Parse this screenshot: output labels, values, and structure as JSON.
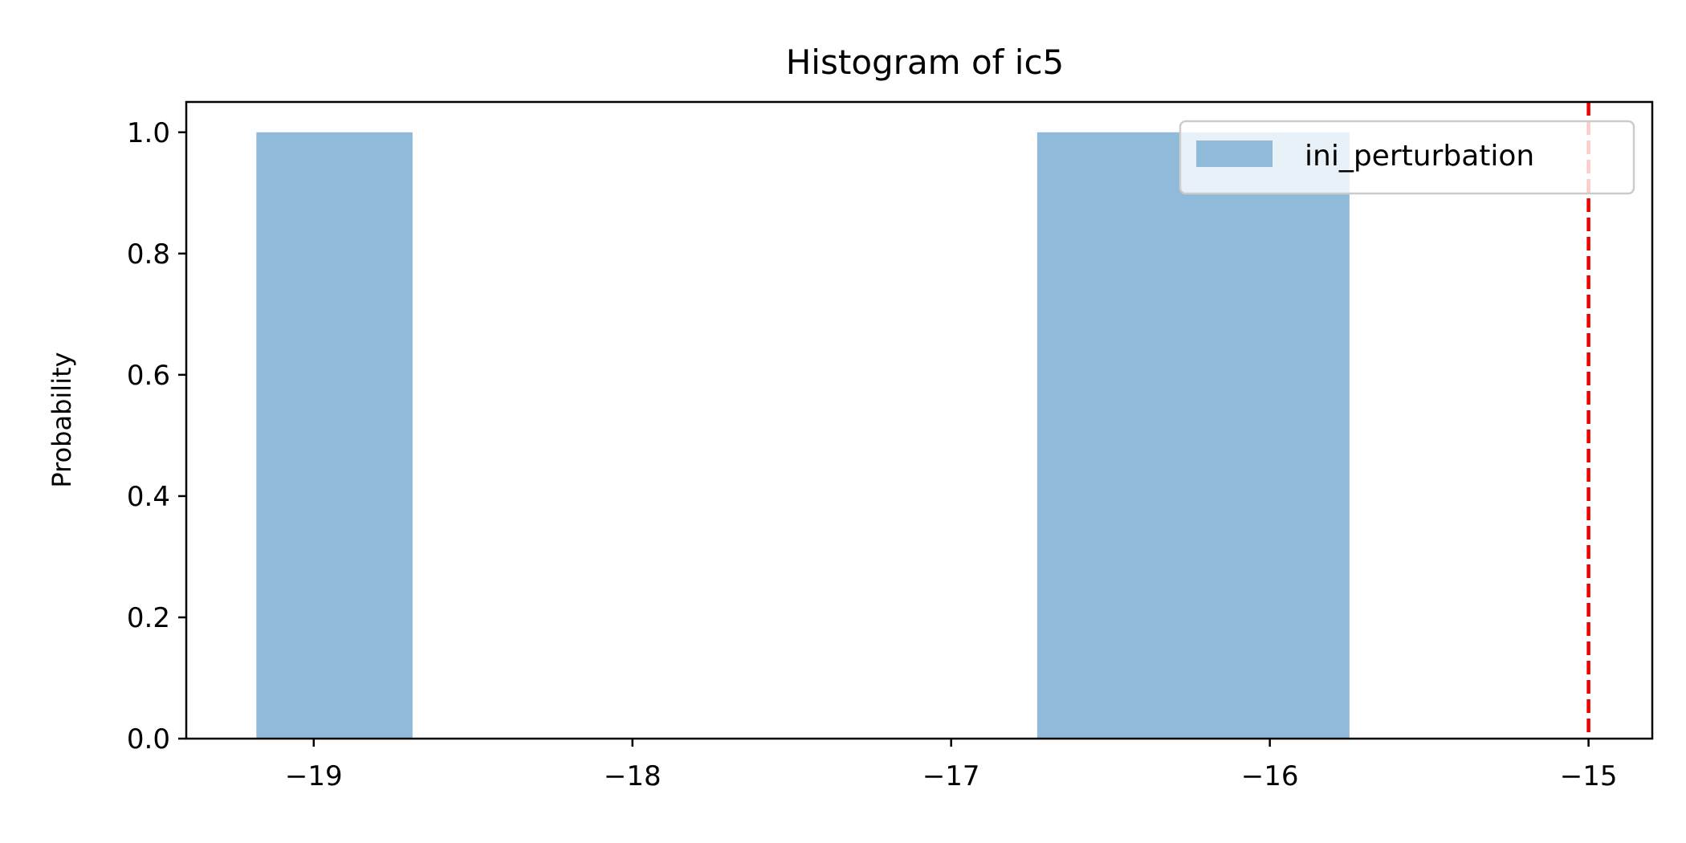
{
  "chart_data": {
    "type": "bar",
    "title": "Histogram of ic5",
    "xlabel": "",
    "ylabel": "Probability",
    "xlim": [
      -19.4,
      -14.8
    ],
    "ylim": [
      0,
      1.05
    ],
    "x_ticks": [
      -19,
      -18,
      -17,
      -16,
      -15
    ],
    "x_tick_labels": [
      "−19",
      "−18",
      "−17",
      "−16",
      "−15"
    ],
    "y_ticks": [
      0.0,
      0.2,
      0.4,
      0.6,
      0.8,
      1.0
    ],
    "y_tick_labels": [
      "0.0",
      "0.2",
      "0.4",
      "0.6",
      "0.8",
      "1.0"
    ],
    "series": [
      {
        "name": "ini_perturbation",
        "color": "#8fbad9",
        "bins": [
          {
            "x0": -19.18,
            "x1": -18.69,
            "value": 1.0
          },
          {
            "x0": -16.73,
            "x1": -15.75,
            "value": 1.0
          }
        ]
      }
    ],
    "reference_line": {
      "x": -15.0,
      "color": "#ee0000",
      "style": "dashed"
    },
    "legend": {
      "position": "top-right",
      "entries": [
        "ini_perturbation"
      ]
    },
    "grid": false
  }
}
